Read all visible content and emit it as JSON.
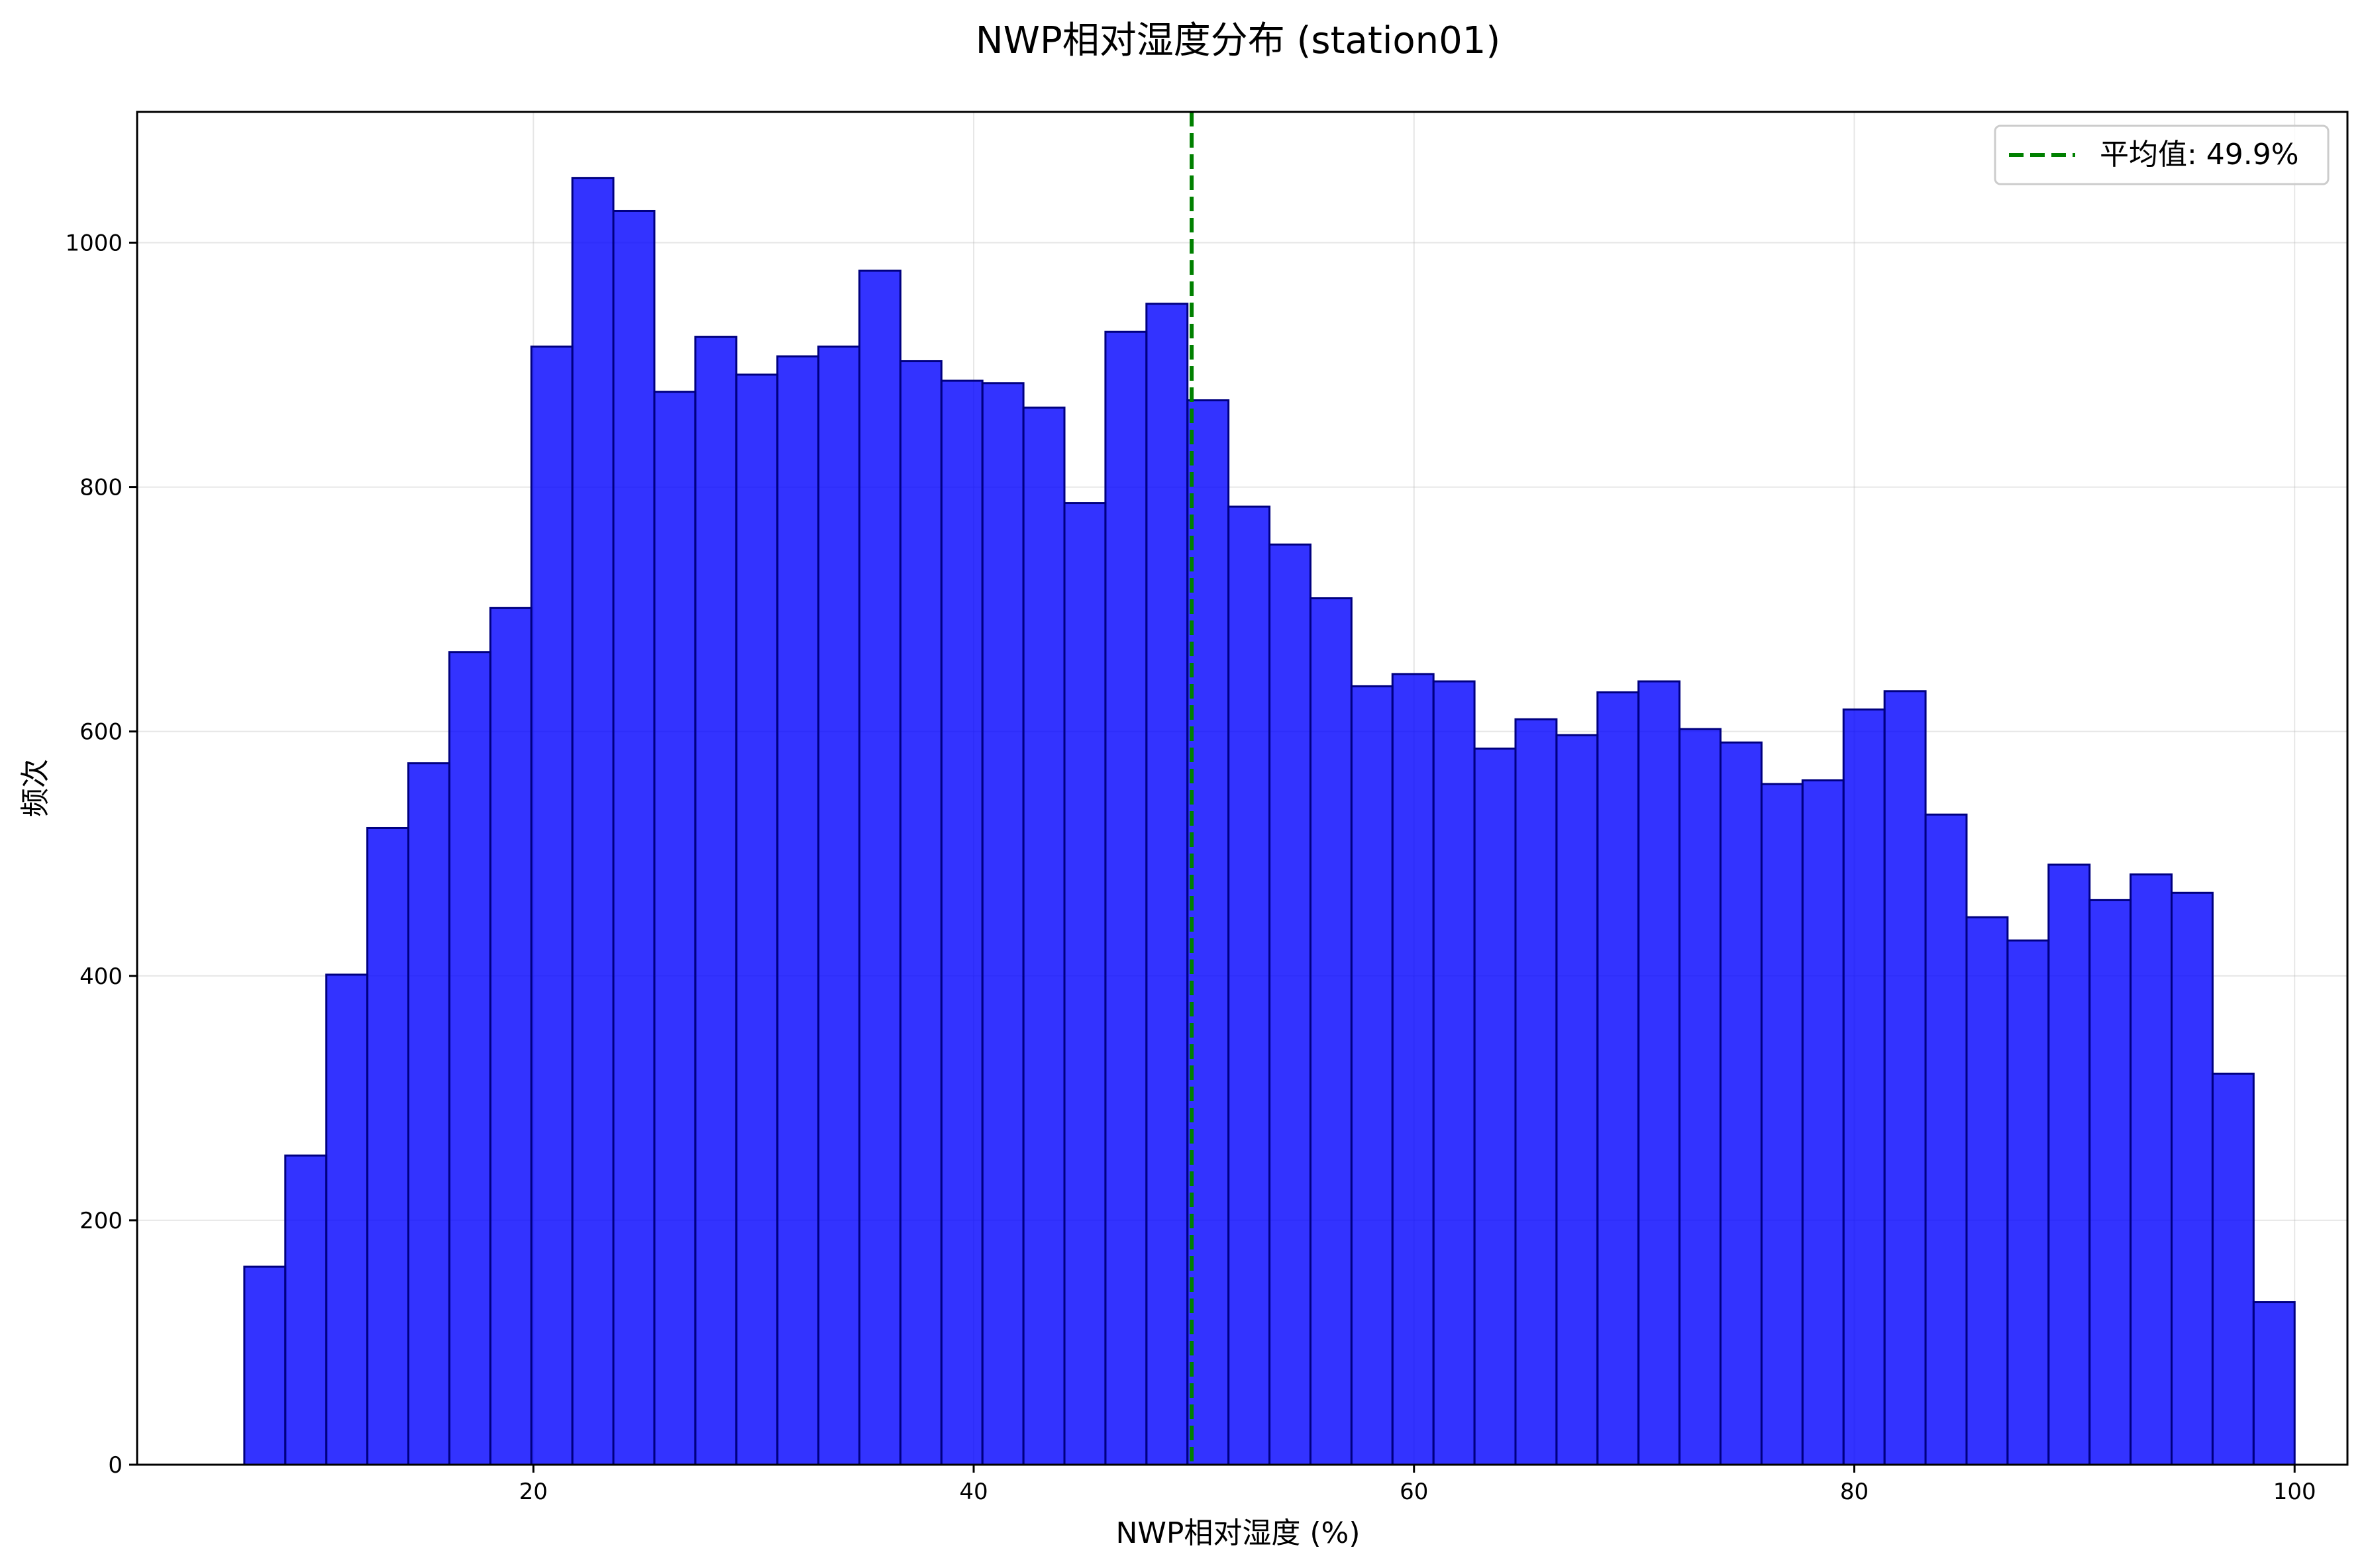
{
  "chart_data": {
    "type": "histogram",
    "title": "NWP相对湿度分布 (station01)",
    "xlabel": "NWP相对湿度 (%)",
    "ylabel": "频次",
    "xlim": [
      2,
      102.4
    ],
    "ylim": [
      0,
      1107
    ],
    "xticks": [
      20,
      40,
      60,
      80,
      100
    ],
    "yticks": [
      0,
      200,
      400,
      600,
      800,
      1000
    ],
    "grid": true,
    "bin_start": 6.87,
    "bin_end": 100,
    "bins": 50,
    "values": [
      162,
      253,
      401,
      521,
      574,
      665,
      701,
      915,
      1053,
      1026,
      878,
      923,
      892,
      907,
      915,
      977,
      903,
      887,
      885,
      865,
      787,
      927,
      950,
      871,
      784,
      753,
      709,
      637,
      647,
      641,
      586,
      610,
      597,
      632,
      641,
      602,
      591,
      557,
      560,
      618,
      633,
      532,
      448,
      429,
      491,
      462,
      483,
      468,
      320,
      133
    ],
    "bar_color": "#0000ff",
    "bar_opacity": 0.8,
    "bar_edge_color": "#000080",
    "mean_line": {
      "value": 49.9,
      "color": "#008000",
      "style": "dashed"
    },
    "legend": {
      "position": "top-right",
      "entries": [
        "平均值: 49.9%"
      ]
    }
  }
}
